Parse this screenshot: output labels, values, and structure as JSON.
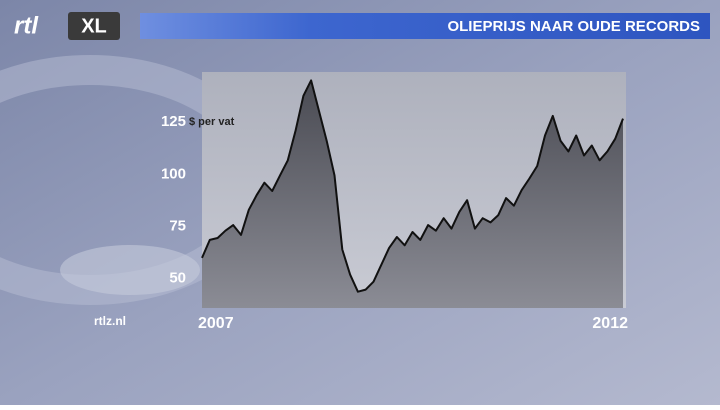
{
  "logo": {
    "brand": "rtl",
    "product": "XL"
  },
  "source": "rtlz.nl",
  "chart_data": {
    "type": "area",
    "title": "OLIEPRIJS NAAR OUDE RECORDS",
    "y_label": "$ per vat",
    "categories": [
      "2007",
      null,
      null,
      null,
      null,
      null,
      null,
      null,
      null,
      null,
      null,
      null,
      null,
      null,
      null,
      null,
      null,
      null,
      null,
      null,
      null,
      null,
      null,
      null,
      null,
      null,
      null,
      null,
      null,
      null,
      null,
      null,
      null,
      null,
      null,
      null,
      null,
      null,
      null,
      null,
      null,
      null,
      null,
      null,
      null,
      null,
      null,
      null,
      null,
      null,
      null,
      null,
      null,
      null,
      "2012"
    ],
    "values": [
      60,
      68.6,
      69.5,
      73,
      75.7,
      71,
      83,
      90,
      96,
      92,
      99.5,
      106.7,
      121,
      137.6,
      145,
      130.5,
      116,
      99.5,
      64,
      52,
      43.8,
      44.8,
      48.6,
      56.7,
      64.8,
      70,
      66,
      72.4,
      68.6,
      75.7,
      73,
      79,
      74,
      82,
      87.6,
      74,
      79,
      77,
      80.5,
      88.6,
      85,
      92.4,
      98,
      104,
      118.6,
      128,
      116,
      111,
      118.6,
      109,
      113.8,
      106.7,
      111,
      117,
      126.7
    ],
    "color": "#5c5d66",
    "line_color": "#111111",
    "ylim": [
      36,
      149
    ],
    "yticks": [
      50,
      75,
      100,
      125
    ],
    "grid": false
  }
}
